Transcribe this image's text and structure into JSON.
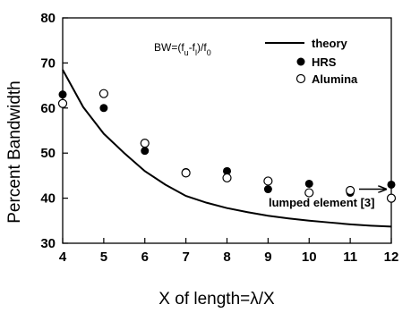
{
  "chart_data": {
    "type": "scatter",
    "xlabel": "X of length=λ/X",
    "ylabel": "Percent Bandwidth",
    "xlim": [
      4,
      12
    ],
    "ylim": [
      30,
      80
    ],
    "x_ticks": [
      4,
      5,
      6,
      7,
      8,
      9,
      10,
      11,
      12
    ],
    "y_ticks": [
      30,
      40,
      50,
      60,
      70,
      80
    ],
    "grid": false,
    "legend_position": "top-right",
    "series": [
      {
        "name": "theory",
        "style": "line",
        "color": "#000000",
        "x": [
          4,
          4.5,
          5,
          5.5,
          6,
          6.5,
          7,
          7.5,
          8,
          8.5,
          9,
          9.5,
          10,
          10.5,
          11,
          11.5,
          12
        ],
        "y": [
          68.5,
          60.2,
          54.3,
          50.0,
          46.0,
          43.0,
          40.5,
          39.0,
          37.8,
          36.9,
          36.1,
          35.5,
          35.0,
          34.6,
          34.2,
          33.9,
          33.7
        ]
      },
      {
        "name": "HRS",
        "style": "filled-circle",
        "color": "#000000",
        "x": [
          4,
          5,
          6,
          7,
          8,
          9,
          10,
          11,
          12
        ],
        "y": [
          63.0,
          60.0,
          50.5,
          45.8,
          46.0,
          42.0,
          43.2,
          41.2,
          43.0
        ]
      },
      {
        "name": "Alumina",
        "style": "open-circle",
        "color": "#000000",
        "x": [
          4,
          5,
          6,
          7,
          8,
          9,
          10,
          11,
          12
        ],
        "y": [
          61.0,
          63.2,
          52.2,
          45.6,
          44.5,
          43.8,
          41.2,
          41.7,
          40.0
        ]
      }
    ],
    "annotations": {
      "formula": {
        "base": "BW=(f",
        "sub1": "u",
        "mid": "-f",
        "sub2": "l",
        "end": ")/f",
        "sub3": "0"
      },
      "lumped_element": {
        "text": "lumped element [3]",
        "x": 12,
        "y": 42
      }
    }
  }
}
